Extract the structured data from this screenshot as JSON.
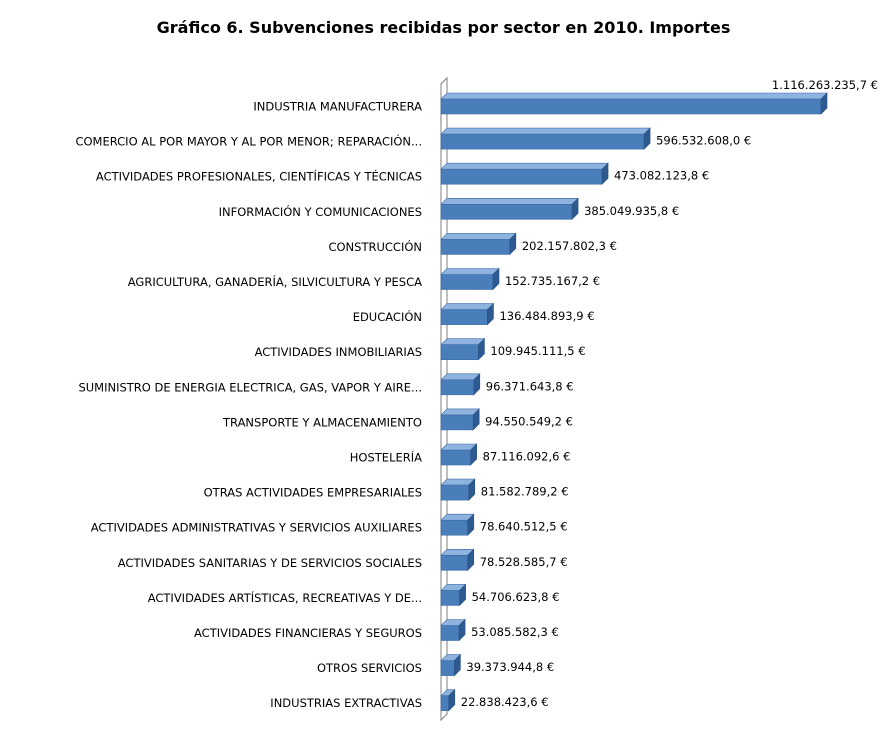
{
  "chart_data": {
    "type": "bar",
    "orientation": "horizontal",
    "title": "Gráfico 6. Subvenciones recibidas por sector en 2010. Importes",
    "xlabel": "",
    "ylabel": "",
    "grid": false,
    "categories": [
      "INDUSTRIA MANUFACTURERA",
      "COMERCIO AL POR MAYOR Y AL POR MENOR; REPARACIÓN...",
      "ACTIVIDADES PROFESIONALES, CIENTÍFICAS Y TÉCNICAS",
      "INFORMACIÓN Y COMUNICACIONES",
      "CONSTRUCCIÓN",
      "AGRICULTURA, GANADERÍA, SILVICULTURA Y PESCA",
      "EDUCACIÓN",
      "ACTIVIDADES INMOBILIARIAS",
      "SUMINISTRO DE ENERGIA ELECTRICA, GAS, VAPOR Y AIRE...",
      "TRANSPORTE Y ALMACENAMIENTO",
      "HOSTELERÍA",
      "OTRAS ACTIVIDADES EMPRESARIALES",
      "ACTIVIDADES ADMINISTRATIVAS Y SERVICIOS AUXILIARES",
      "ACTIVIDADES SANITARIAS Y DE SERVICIOS SOCIALES",
      "ACTIVIDADES ARTÍSTICAS, RECREATIVAS Y DE...",
      "ACTIVIDADES FINANCIERAS Y SEGUROS",
      "OTROS SERVICIOS",
      "INDUSTRIAS EXTRACTIVAS"
    ],
    "values": [
      1116263235.7,
      596532608.0,
      473082123.8,
      385049935.8,
      202157802.3,
      152735167.2,
      136484893.9,
      109945111.5,
      96371643.8,
      94550549.2,
      87116092.6,
      81582789.2,
      78640512.5,
      78528585.7,
      54706623.8,
      53085582.3,
      39373944.8,
      22838423.6
    ],
    "value_labels": [
      "1.116.263.235,7 €",
      "596.532.608,0 €",
      "473.082.123,8 €",
      "385.049.935,8 €",
      "202.157.802,3 €",
      "152.735.167,2 €",
      "136.484.893,9 €",
      "109.945.111,5 €",
      "96.371.643,8 €",
      "94.550.549,2 €",
      "87.116.092,6 €",
      "81.582.789,2 €",
      "78.640.512,5 €",
      "78.528.585,7 €",
      "54.706.623,8 €",
      "53.085.582,3 €",
      "39.373.944,8 €",
      "22.838.423,6 €"
    ],
    "colors": {
      "bar_front": "#4a7ebb",
      "bar_top": "#8fb3df",
      "bar_side": "#2c5a91",
      "wall": "#7f7f7f"
    }
  }
}
